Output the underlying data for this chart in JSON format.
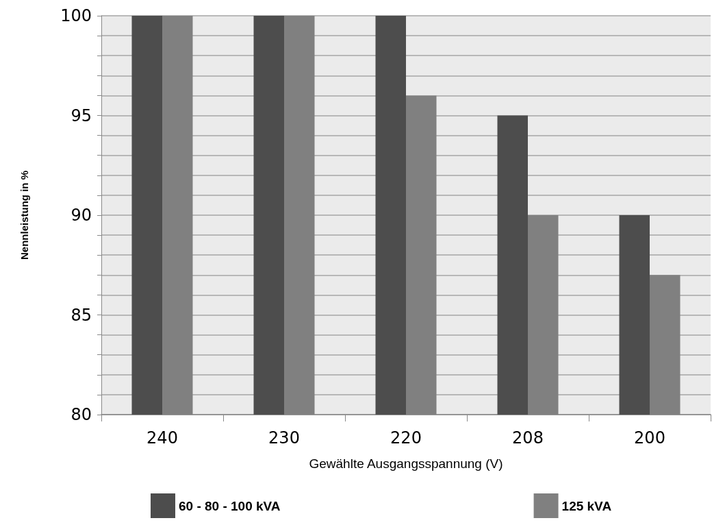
{
  "chart_data": {
    "type": "bar",
    "xlabel": "Gewählte Ausgangsspannung (V)",
    "ylabel": "Nennleistung in %",
    "categories": [
      "240",
      "230",
      "220",
      "208",
      "200"
    ],
    "series": [
      {
        "name": "60 - 80 - 100 kVA",
        "color": "#4d4d4d",
        "values": [
          100,
          100,
          100,
          95,
          90
        ]
      },
      {
        "name": "125 kVA",
        "color": "#808080",
        "values": [
          100,
          100,
          96,
          90,
          87
        ]
      }
    ],
    "ylim": [
      80,
      100
    ],
    "yticks": [
      80,
      {
        "value": 81,
        "label": null
      },
      {
        "value": 82,
        "label": null
      },
      {
        "value": 83,
        "label": null
      },
      {
        "value": 84,
        "label": null
      },
      85,
      {
        "value": 86,
        "label": null
      },
      {
        "value": 87,
        "label": null
      },
      {
        "value": 88,
        "label": null
      },
      {
        "value": 89,
        "label": null
      },
      90,
      {
        "value": 91,
        "label": null
      },
      {
        "value": 92,
        "label": null
      },
      {
        "value": 93,
        "label": null
      },
      {
        "value": 94,
        "label": null
      },
      95,
      {
        "value": 96,
        "label": null
      },
      {
        "value": 97,
        "label": null
      },
      {
        "value": 98,
        "label": null
      },
      {
        "value": 99,
        "label": null
      },
      100
    ],
    "grid": "y",
    "legend": "bottom"
  }
}
